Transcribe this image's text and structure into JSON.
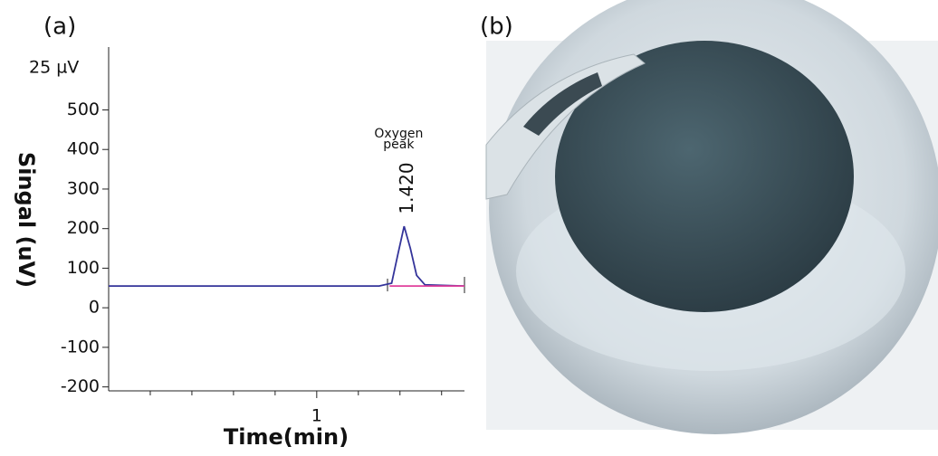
{
  "chart_data": {
    "type": "line",
    "panel_label": "(a)",
    "scale_label": "25 µV",
    "ylabel": "Singal (uV)",
    "xlabel": "Time(min)",
    "series": [
      {
        "color": "#34349a",
        "x": [
          0,
          1.3,
          1.36,
          1.39,
          1.42,
          1.45,
          1.48,
          1.52,
          1.71
        ],
        "values": [
          55,
          55,
          62,
          135,
          206,
          150,
          82,
          58,
          55
        ]
      },
      {
        "color": "#e0409c",
        "x": [
          1.35,
          1.71
        ],
        "values": [
          55,
          55
        ]
      }
    ],
    "annotation": {
      "lines": [
        "Oxygen",
        "peak"
      ],
      "x": 1.42,
      "label": "1.420"
    },
    "xlim": [
      0,
      1.71
    ],
    "xticks": [
      1
    ],
    "xminorticks": [
      0.2,
      0.4,
      0.6,
      0.8,
      1.2,
      1.4,
      1.6
    ],
    "ylim": [
      -210,
      652
    ],
    "yticks": [
      -200,
      -100,
      0,
      100,
      200,
      300,
      400,
      500
    ]
  },
  "figure_b": {
    "label": "(b)"
  }
}
